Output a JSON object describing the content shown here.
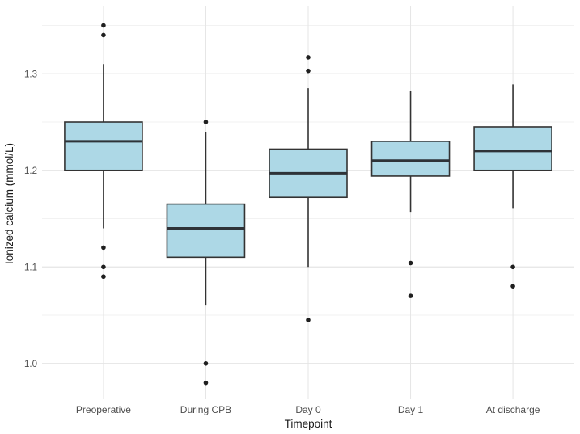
{
  "figure": {
    "background": "#ffffff"
  },
  "chart_data": {
    "type": "boxplot",
    "xlabel": "Timepoint",
    "ylabel": "Ionized calcium (mmol/L)",
    "categories": [
      "Preoperative",
      "During CPB",
      "Day 0",
      "Day 1",
      "At discharge"
    ],
    "series": [
      {
        "category": "Preoperative",
        "whisker_low": 1.14,
        "q1": 1.2,
        "median": 1.23,
        "q3": 1.25,
        "whisker_high": 1.31,
        "outliers": [
          1.35,
          1.34,
          1.12,
          1.1,
          1.09
        ]
      },
      {
        "category": "During CPB",
        "whisker_low": 1.06,
        "q1": 1.11,
        "median": 1.14,
        "q3": 1.165,
        "whisker_high": 1.24,
        "outliers": [
          1.25,
          1.0,
          0.98
        ]
      },
      {
        "category": "Day 0",
        "whisker_low": 1.1,
        "q1": 1.172,
        "median": 1.197,
        "q3": 1.222,
        "whisker_high": 1.285,
        "outliers": [
          1.317,
          1.303,
          1.045
        ]
      },
      {
        "category": "Day 1",
        "whisker_low": 1.157,
        "q1": 1.194,
        "median": 1.21,
        "q3": 1.23,
        "whisker_high": 1.282,
        "outliers": [
          1.104,
          1.07
        ]
      },
      {
        "category": "At discharge",
        "whisker_low": 1.161,
        "q1": 1.2,
        "median": 1.22,
        "q3": 1.245,
        "whisker_high": 1.289,
        "outliers": [
          1.1,
          1.08
        ]
      }
    ],
    "y_major_ticks": [
      1.0,
      1.1,
      1.2,
      1.3
    ],
    "y_tick_labels": [
      "1.0",
      "1.1",
      "1.2",
      "1.3"
    ],
    "y_minor_ticks": [
      1.05,
      1.15,
      1.25,
      1.35
    ],
    "ylim": [
      0.963,
      1.3705
    ],
    "grid": true,
    "legend": "none",
    "colors": {
      "box_fill": "#add8e6",
      "box_stroke": "#333333",
      "median": "#2e3338",
      "whisker": "#333333",
      "outlier": "#1f1f1f",
      "grid_major": "#e5e5e5",
      "grid_minor": "#f2f2f2",
      "tick_text": "#4d4d4d",
      "axis_title_text": "#1a1a1a",
      "background": "#ffffff"
    }
  }
}
